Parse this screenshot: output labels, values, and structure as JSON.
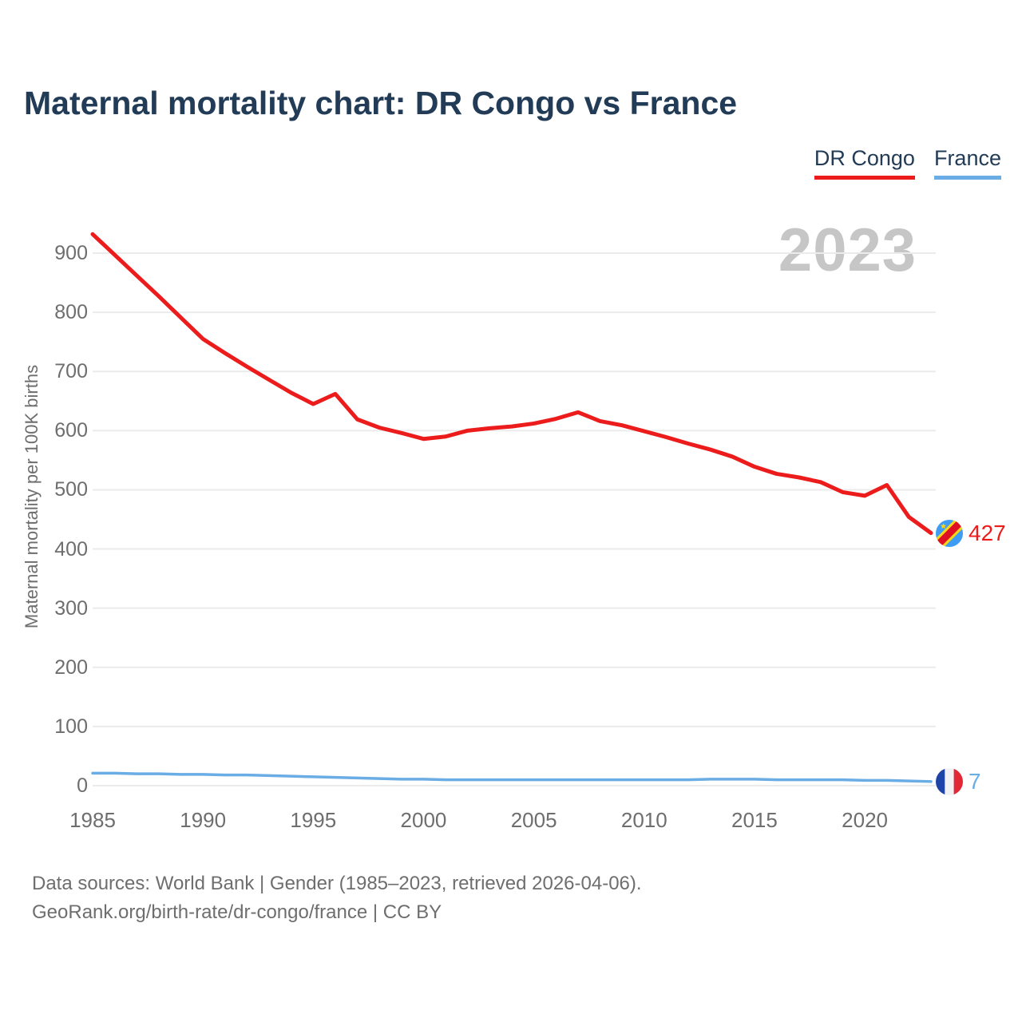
{
  "header": {
    "title": "Maternal mortality chart: DR Congo vs France"
  },
  "legend": {
    "items": [
      {
        "label": "DR Congo",
        "color": "#ed1c1c"
      },
      {
        "label": "France",
        "color": "#6aace4"
      }
    ]
  },
  "chart_data": {
    "type": "line",
    "title": "Maternal mortality chart: DR Congo vs France",
    "watermark": "2023",
    "ylabel": "Maternal mortality per 100K births",
    "xlabel": "",
    "x": [
      1985,
      1986,
      1987,
      1988,
      1989,
      1990,
      1991,
      1992,
      1993,
      1994,
      1995,
      1996,
      1997,
      1998,
      1999,
      2000,
      2001,
      2002,
      2003,
      2004,
      2005,
      2006,
      2007,
      2008,
      2009,
      2010,
      2011,
      2012,
      2013,
      2014,
      2015,
      2016,
      2017,
      2018,
      2019,
      2020,
      2021,
      2022,
      2023
    ],
    "xticks": [
      1985,
      1990,
      1995,
      2000,
      2005,
      2010,
      2015,
      2020
    ],
    "yticks": [
      0,
      100,
      200,
      300,
      400,
      500,
      600,
      700,
      800,
      900
    ],
    "ylim": [
      0,
      940
    ],
    "grid": "horizontal",
    "legend_position": "top-right",
    "series": [
      {
        "name": "DR Congo",
        "color": "#ed1c1c",
        "end_label": "427",
        "values": [
          932,
          897,
          862,
          827,
          791,
          755,
          731,
          708,
          686,
          664,
          645,
          662,
          619,
          605,
          596,
          586,
          590,
          600,
          604,
          607,
          612,
          620,
          631,
          616,
          609,
          599,
          589,
          578,
          568,
          556,
          539,
          527,
          521,
          513,
          496,
          490,
          508,
          454,
          427
        ]
      },
      {
        "name": "France",
        "color": "#6aace4",
        "end_label": "7",
        "values": [
          21,
          21,
          20,
          20,
          19,
          19,
          18,
          18,
          17,
          16,
          15,
          14,
          13,
          12,
          11,
          11,
          10,
          10,
          10,
          10,
          10,
          10,
          10,
          10,
          10,
          10,
          10,
          10,
          11,
          11,
          11,
          10,
          10,
          10,
          10,
          9,
          9,
          8,
          7
        ]
      }
    ]
  },
  "footer": {
    "line1": "Data sources: World Bank | Gender (1985–2023, retrieved 2026-04-06).",
    "line2": "GeoRank.org/birth-rate/dr-congo/france | CC BY"
  }
}
